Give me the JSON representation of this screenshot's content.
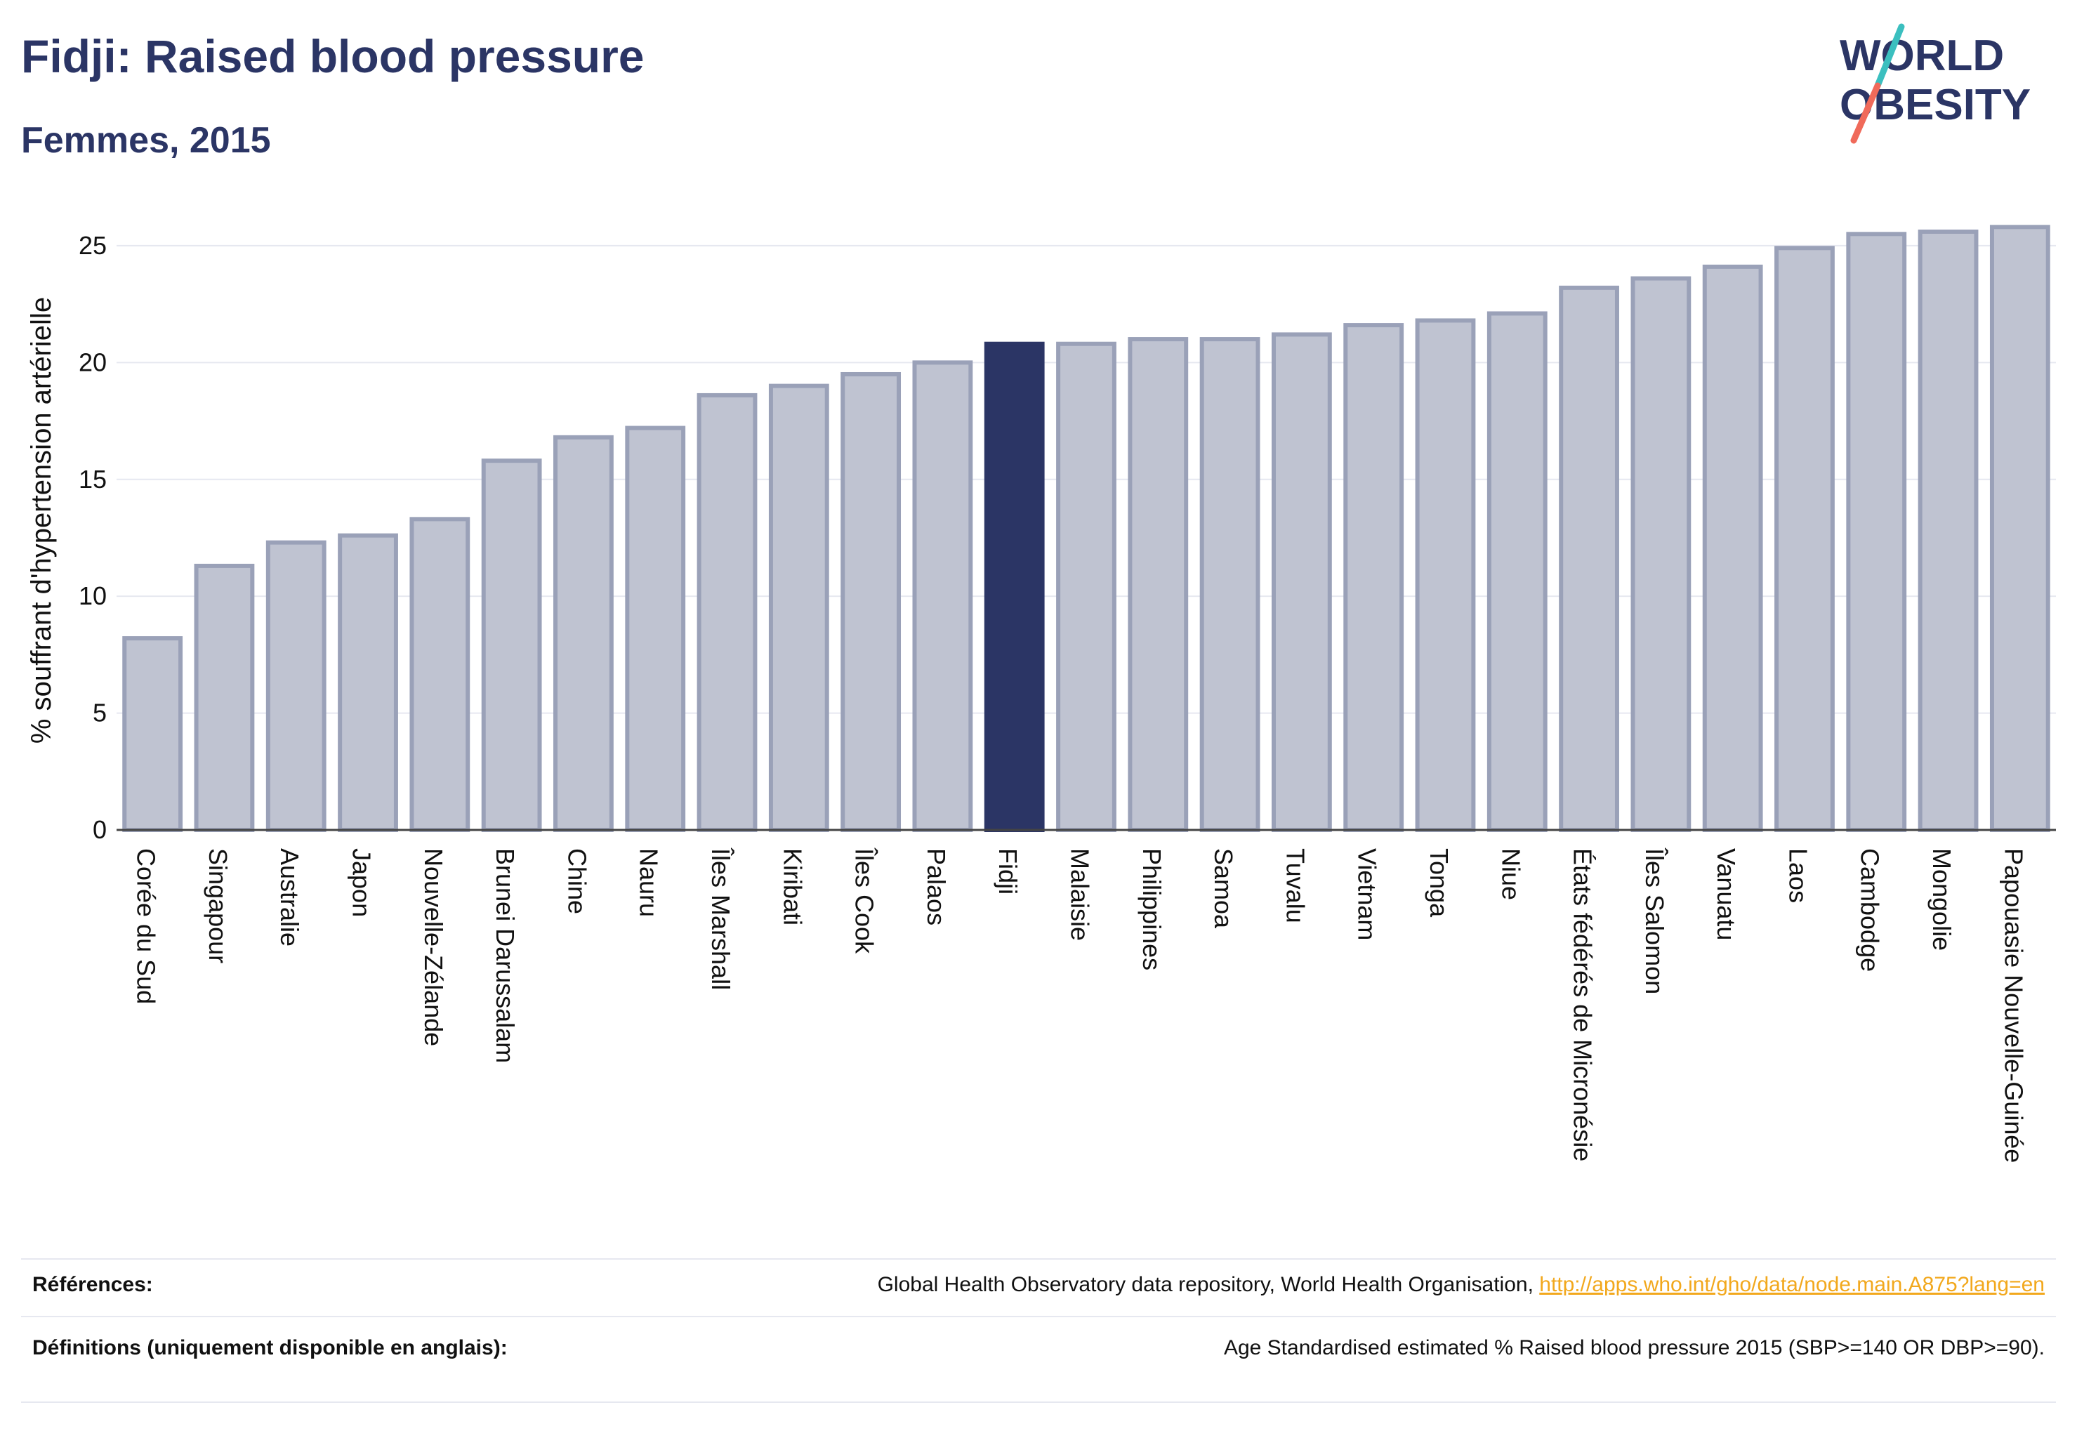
{
  "title": "Fidji: Raised blood pressure",
  "subtitle": "Femmes, 2015",
  "logo": {
    "line1": "WORLD",
    "line2": "OBESITY",
    "o_char": "O"
  },
  "colors": {
    "bar": "#bfc3d1",
    "bar_stroke": "#9aa1b8",
    "highlight": "#2b3565",
    "text": "#2b3565",
    "grid": "#e6e8f0",
    "link": "#f2a81d",
    "logo_slash_teal": "#3bbfbf",
    "logo_slash_coral": "#f06a5a"
  },
  "chart_data": {
    "type": "bar",
    "ylabel": "% souffrant d'hypertension artérielle",
    "ylim": [
      0,
      26.5
    ],
    "yticks": [
      0,
      5,
      10,
      15,
      20,
      25
    ],
    "highlight": "Fidji",
    "categories": [
      "Corée du Sud",
      "Singapour",
      "Australie",
      "Japon",
      "Nouvelle-Zélande",
      "Brunei Darussalam",
      "Chine",
      "Nauru",
      "Îles Marshall",
      "Kiribati",
      "Îles Cook",
      "Palaos",
      "Fidji",
      "Malaisie",
      "Philippines",
      "Samoa",
      "Tuvalu",
      "Vietnam",
      "Tonga",
      "Niue",
      "États fédérés de Micronésie",
      "Îles Salomon",
      "Vanuatu",
      "Laos",
      "Cambodge",
      "Mongolie",
      "Papouasie Nouvelle-Guinée"
    ],
    "values": [
      8.2,
      11.3,
      12.3,
      12.6,
      13.3,
      15.8,
      16.8,
      17.2,
      18.6,
      19.0,
      19.5,
      20.0,
      20.8,
      20.8,
      21.0,
      21.0,
      21.2,
      21.6,
      21.8,
      22.1,
      23.2,
      23.6,
      24.1,
      24.9,
      25.5,
      25.6,
      25.8
    ]
  },
  "references": {
    "label": "Références:",
    "text": "Global Health Observatory data repository, World Health Organisation, ",
    "link": "http://apps.who.int/gho/data/node.main.A875?lang=en"
  },
  "definitions": {
    "label": "Définitions (uniquement disponible en anglais):",
    "text": "Age Standardised estimated % Raised blood pressure 2015 (SBP>=140 OR DBP>=90)."
  }
}
